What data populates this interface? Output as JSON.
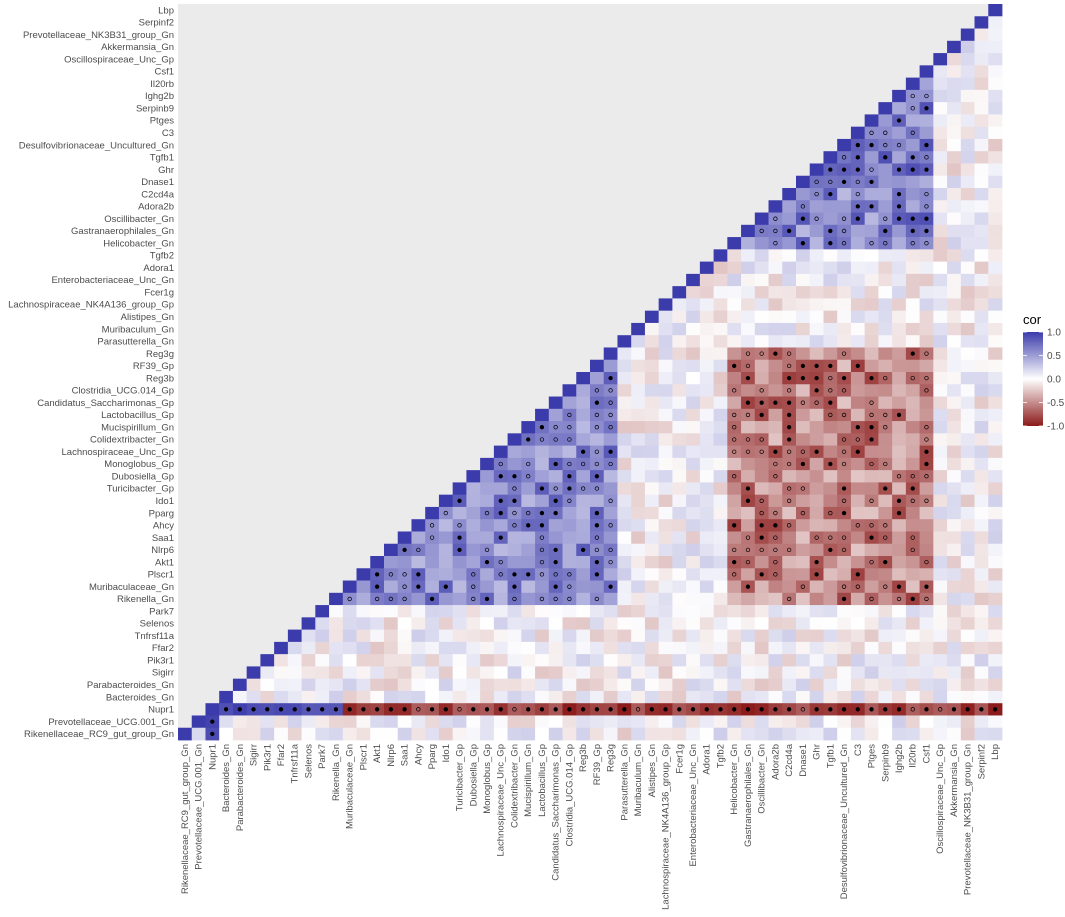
{
  "chart_data": {
    "type": "heatmap",
    "subtype": "lower-triangular correlation matrix",
    "variables": [
      "Rikenellaceae_RC9_gut_group_Gn",
      "Prevotellaceae_UCG.001_Gn",
      "Nupr1",
      "Bacteroides_Gn",
      "Parabacteroides_Gn",
      "Sigirr",
      "Pik3r1",
      "Ffar2",
      "Tnfrsf11a",
      "Selenos",
      "Park7",
      "Rikenella_Gn",
      "Muribaculaceae_Gn",
      "Plscr1",
      "Akt1",
      "Nlrp6",
      "Saa1",
      "Ahcy",
      "Pparg",
      "Ido1",
      "Turicibacter_Gp",
      "Dubosiella_Gp",
      "Monoglobus_Gp",
      "Lachnospiraceae_Unc_Gp",
      "Colidextribacter_Gn",
      "Mucispirillum_Gn",
      "Lactobacillus_Gp",
      "Candidatus_Saccharimonas_Gp",
      "Clostridia_UCG.014_Gp",
      "Reg3b",
      "RF39_Gp",
      "Reg3g",
      "Parasutterella_Gn",
      "Muribaculum_Gn",
      "Alistipes_Gn",
      "Lachnospiraceae_NK4A136_group_Gp",
      "Fcer1g",
      "Enterobacteriaceae_Unc_Gn",
      "Adora1",
      "Tgfb2",
      "Helicobacter_Gn",
      "Gastranaerophilales_Gn",
      "Oscillibacter_Gn",
      "Adora2b",
      "C2cd4a",
      "Dnase1",
      "Ghr",
      "Tgfb1",
      "Desulfovibrionaceae_Uncultured_Gn",
      "C3",
      "Ptges",
      "Serpinb9",
      "Ighg2b",
      "Il20rb",
      "Csf1",
      "Oscillospiraceae_Unc_Gp",
      "Akkermansia_Gn",
      "Prevotellaceae_NK3B31_group_Gn",
      "Serpinf2",
      "Lbp"
    ],
    "legend": {
      "title": "cor",
      "ticks": [
        "1.0",
        "0.5",
        "0.0",
        "-0.5",
        "-1.0"
      ],
      "tick_values": [
        1.0,
        0.5,
        0.0,
        -0.5,
        -1.0
      ],
      "range": [
        -1.0,
        1.0
      ],
      "high_color": "#3b3bab",
      "mid_color": "#ffffff",
      "low_color": "#8b1a1a",
      "placement": "right"
    },
    "groups": {
      "bacterial_cluster_A": [
        "Rikenella_Gn",
        "Muribaculaceae_Gn",
        "Plscr1",
        "Akt1",
        "Nlrp6",
        "Saa1",
        "Ahcy",
        "Pparg",
        "Ido1",
        "Turicibacter_Gp",
        "Dubosiella_Gp",
        "Monoglobus_Gp",
        "Lachnospiraceae_Unc_Gp",
        "Colidextribacter_Gn",
        "Mucispirillum_Gn",
        "Lactobacillus_Gp",
        "Candidatus_Saccharimonas_Gp",
        "Clostridia_UCG.014_Gp",
        "Reg3b",
        "RF39_Gp",
        "Reg3g"
      ],
      "bacterial_cluster_B": [
        "Helicobacter_Gn",
        "Gastranaerophilales_Gn",
        "Oscillibacter_Gn",
        "Adora2b",
        "C2cd4a",
        "Dnase1",
        "Ghr",
        "Tgfb1",
        "Desulfovibrionaceae_Uncultured_Gn",
        "C3",
        "Ptges",
        "Serpinb9",
        "Ighg2b",
        "Il20rb",
        "Csf1"
      ]
    },
    "grid": false,
    "panel_background": "#ebebeb",
    "significance_markers": {
      "filled": "p < 0.01",
      "open": "p < 0.05"
    }
  }
}
